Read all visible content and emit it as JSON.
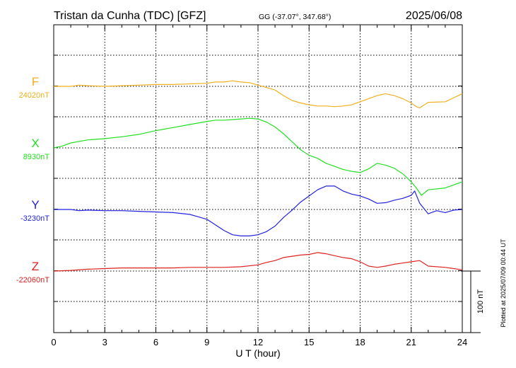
{
  "chart_data": {
    "type": "line",
    "title": "Tristan da Cunha (TDC)  [GFZ]",
    "coords": "GG (-37.07°, 347.68°)",
    "date": "2025/06/08",
    "xlabel": "U T (hour)",
    "xlim": [
      0,
      24
    ],
    "xticks": [
      "0",
      "3",
      "6",
      "9",
      "12",
      "15",
      "18",
      "21",
      "24"
    ],
    "grid": true,
    "scale_label": "100 nT",
    "scale_nT": 100,
    "footer": "Plotted at 2025/07/09 00:44 UT",
    "series": [
      {
        "name": "F",
        "baseline_label": "24020nT",
        "baseline_nT": 24020,
        "color": "#f0b020",
        "x": [
          0,
          1,
          1.5,
          2,
          3,
          4,
          5,
          6,
          7,
          8,
          9,
          9.5,
          10,
          10.5,
          11,
          11.5,
          12,
          12.5,
          13,
          13.5,
          14,
          14.5,
          15,
          15.5,
          16,
          16.5,
          17,
          17.5,
          18,
          18.5,
          19,
          19.5,
          20,
          20.5,
          21,
          21.3,
          21.5,
          22,
          23,
          24
        ],
        "y": [
          24020,
          24020,
          24022,
          24021,
          24020,
          24021,
          24022,
          24023,
          24023,
          24024,
          24025,
          24027,
          24027,
          24029,
          24027,
          24026,
          24022,
          24018,
          24014,
          24005,
          23997,
          23993,
          23990,
          23988,
          23988,
          23987,
          23988,
          23990,
          23995,
          24000,
          24005,
          24008,
          24005,
          24000,
          23993,
          23987,
          23985,
          23994,
          23995,
          24008
        ]
      },
      {
        "name": "X",
        "baseline_label": "8930nT",
        "baseline_nT": 8930,
        "color": "#22e022",
        "x": [
          0,
          0.5,
          1,
          2,
          3,
          4,
          5,
          6,
          7,
          8,
          9,
          9.5,
          10,
          10.5,
          11,
          11.5,
          12,
          12.5,
          13,
          13.5,
          14,
          14.5,
          15,
          15.5,
          16,
          16.5,
          17,
          17.5,
          18,
          18.5,
          19,
          19.5,
          20,
          20.5,
          21,
          21.3,
          21.6,
          22,
          23,
          24
        ],
        "y": [
          8930,
          8933,
          8938,
          8943,
          8945,
          8948,
          8952,
          8958,
          8963,
          8968,
          8973,
          8975,
          8975,
          8976,
          8977,
          8978,
          8977,
          8972,
          8964,
          8953,
          8940,
          8927,
          8918,
          8913,
          8905,
          8900,
          8895,
          8892,
          8890,
          8896,
          8905,
          8902,
          8897,
          8888,
          8875,
          8865,
          8853,
          8862,
          8865,
          8875
        ]
      },
      {
        "name": "Y",
        "baseline_label": "-3230nT",
        "baseline_nT": -3230,
        "color": "#2222dd",
        "x": [
          0,
          1,
          1.5,
          2,
          3,
          4,
          5,
          6,
          7,
          8,
          8.5,
          9,
          9.5,
          10,
          10.5,
          11,
          11.5,
          12,
          12.5,
          13,
          13.5,
          14,
          14.5,
          15,
          15.5,
          16,
          16.5,
          17,
          17.5,
          18,
          18.5,
          19,
          19.5,
          20,
          20.5,
          21,
          21.2,
          21.5,
          22,
          22.5,
          23,
          23.5,
          24
        ],
        "y": [
          -3230,
          -3230,
          -3232,
          -3231,
          -3232,
          -3232,
          -3233,
          -3234,
          -3235,
          -3238,
          -3242,
          -3246,
          -3255,
          -3264,
          -3271,
          -3273,
          -3273,
          -3271,
          -3266,
          -3257,
          -3243,
          -3231,
          -3218,
          -3208,
          -3198,
          -3192,
          -3192,
          -3200,
          -3205,
          -3208,
          -3213,
          -3220,
          -3219,
          -3215,
          -3212,
          -3207,
          -3200,
          -3220,
          -3237,
          -3232,
          -3235,
          -3231,
          -3230
        ]
      },
      {
        "name": "Z",
        "baseline_label": "-22060nT",
        "baseline_nT": -22060,
        "color": "#dd2222",
        "x": [
          0,
          1,
          2,
          3,
          4,
          5,
          6,
          7,
          8,
          9,
          10,
          11,
          12,
          12.5,
          13,
          13.5,
          14,
          14.5,
          15,
          15.5,
          16,
          16.5,
          17,
          17.5,
          18,
          18.5,
          19,
          19.5,
          20,
          20.5,
          21,
          21.5,
          22,
          23,
          24
        ],
        "y": [
          -22060,
          -22059,
          -22057,
          -22056,
          -22055,
          -22055,
          -22055,
          -22055,
          -22054,
          -22054,
          -22054,
          -22053,
          -22050,
          -22046,
          -22043,
          -22038,
          -22036,
          -22034,
          -22033,
          -22030,
          -22032,
          -22035,
          -22038,
          -22040,
          -22045,
          -22052,
          -22054,
          -22052,
          -22049,
          -22047,
          -22045,
          -22043,
          -22052,
          -22054,
          -22058
        ]
      }
    ]
  }
}
